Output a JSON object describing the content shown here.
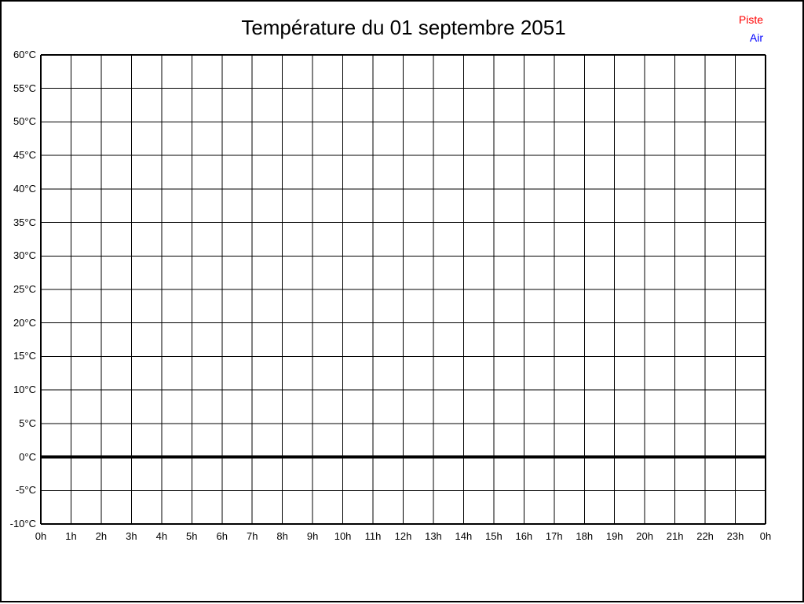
{
  "page": {
    "background": "#ffffff",
    "border_color": "#000000"
  },
  "chart": {
    "title": "Température du 01 septembre 2051"
  },
  "legend": {
    "items": [
      {
        "label": "Piste",
        "color": "#ff0000"
      },
      {
        "label": "Air",
        "color": "#0000ff"
      }
    ]
  },
  "chart_data": {
    "type": "line",
    "title": "Température du 01 septembre 2051",
    "xlabel": "",
    "ylabel": "",
    "x_tick_labels": [
      "0h",
      "1h",
      "2h",
      "3h",
      "4h",
      "5h",
      "6h",
      "7h",
      "8h",
      "9h",
      "10h",
      "11h",
      "12h",
      "13h",
      "14h",
      "15h",
      "16h",
      "17h",
      "18h",
      "19h",
      "20h",
      "21h",
      "22h",
      "23h",
      "0h"
    ],
    "y_tick_labels": [
      "60°C",
      "55°C",
      "50°C",
      "45°C",
      "40°C",
      "35°C",
      "30°C",
      "25°C",
      "20°C",
      "15°C",
      "10°C",
      "5°C",
      "0°C",
      "-5°C",
      "-10°C"
    ],
    "ylim": [
      -10,
      60
    ],
    "y_step": 5,
    "x_intervals": 24,
    "grid": true,
    "grid_color": "#000000",
    "zero_line": {
      "value": 0,
      "emphasized": true
    },
    "legend_position": "top-right",
    "series": [
      {
        "name": "Piste",
        "color": "#ff0000",
        "values": []
      },
      {
        "name": "Air",
        "color": "#0000ff",
        "values": []
      }
    ]
  }
}
